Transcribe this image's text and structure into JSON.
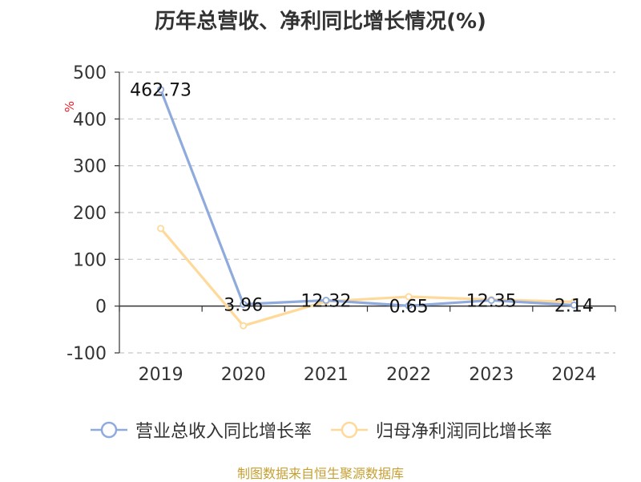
{
  "title": "历年总营收、净利同比增长情况(%)",
  "ylabel": "%",
  "footer": "制图数据来自恒生聚源数据库",
  "colors": {
    "revenue": "#8faadc",
    "profit": "#ffd999",
    "grid": "#c8c8c8",
    "axis": "#333333"
  },
  "chart_data": {
    "type": "line",
    "title": "历年总营收、净利同比增长情况(%)",
    "ylabel": "%",
    "xlabel": "",
    "categories": [
      "2019",
      "2020",
      "2021",
      "2022",
      "2023",
      "2024"
    ],
    "ylim": [
      -100,
      500
    ],
    "yticks": [
      -100,
      0,
      100,
      200,
      300,
      400,
      500
    ],
    "grid": true,
    "legend": "bottom",
    "series": [
      {
        "name": "营业总收入同比增长率",
        "values": [
          462.73,
          3.96,
          12.32,
          0.65,
          12.35,
          2.14
        ],
        "labels": [
          "462.73",
          "3.96",
          "12.32",
          "0.65",
          "12.35",
          "2.14"
        ]
      },
      {
        "name": "归母净利润同比增长率",
        "values": [
          166,
          -42,
          10,
          20,
          14,
          9
        ]
      }
    ]
  }
}
